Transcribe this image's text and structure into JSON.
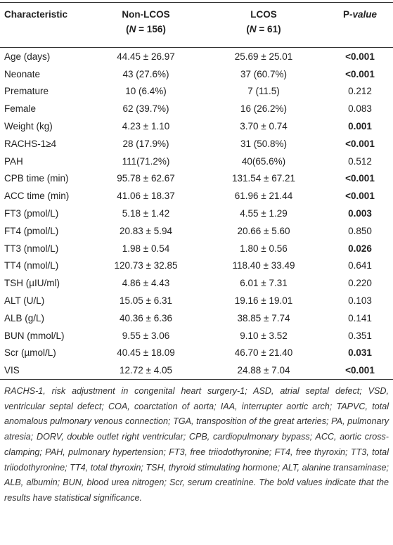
{
  "table": {
    "header": {
      "characteristic": "Characteristic",
      "non_lcos": {
        "label": "Non-LCOS",
        "n_parts": [
          "(",
          "N",
          " = 156)"
        ]
      },
      "lcos": {
        "label": "LCOS",
        "n_parts": [
          "(",
          "N",
          " = 61)"
        ]
      },
      "p_value": [
        "P",
        "-value"
      ]
    },
    "rows": [
      [
        "Age (days)",
        "44.45 ± 26.97",
        "25.69 ± 25.01",
        "<0.001"
      ],
      [
        "Neonate",
        "43 (27.6%)",
        "37 (60.7%)",
        "<0.001"
      ],
      [
        "Premature",
        "10 (6.4%)",
        "7 (11.5)",
        "0.212"
      ],
      [
        "Female",
        "62 (39.7%)",
        "16 (26.2%)",
        "0.083"
      ],
      [
        "Weight (kg)",
        "4.23 ± 1.10",
        "3.70 ± 0.74",
        "0.001"
      ],
      [
        "RACHS-1≥4",
        "28 (17.9%)",
        "31 (50.8%)",
        "<0.001"
      ],
      [
        "PAH",
        "111(71.2%)",
        "40(65.6%)",
        "0.512"
      ],
      [
        "CPB time (min)",
        "95.78 ± 62.67",
        "131.54 ± 67.21",
        "<0.001"
      ],
      [
        "ACC time (min)",
        "41.06 ± 18.37",
        "61.96 ± 21.44",
        "<0.001"
      ],
      [
        "FT3 (pmol/L)",
        "5.18 ± 1.42",
        "4.55 ± 1.29",
        "0.003"
      ],
      [
        "FT4 (pmol/L)",
        "20.83 ± 5.94",
        "20.66 ± 5.60",
        "0.850"
      ],
      [
        "TT3 (nmol/L)",
        "1.98 ± 0.54",
        "1.80 ± 0.56",
        "0.026"
      ],
      [
        "TT4 (nmol/L)",
        "120.73 ± 32.85",
        "118.40 ± 33.49",
        "0.641"
      ],
      [
        "TSH (µIU/ml)",
        "4.86 ± 4.43",
        "6.01 ± 7.31",
        "0.220"
      ],
      [
        "ALT (U/L)",
        "15.05 ± 6.31",
        "19.16 ± 19.01",
        "0.103"
      ],
      [
        "ALB (g/L)",
        "40.36 ± 6.36",
        "38.85 ± 7.74",
        "0.141"
      ],
      [
        "BUN (mmol/L)",
        "9.55 ± 3.06",
        "9.10 ± 3.52",
        "0.351"
      ],
      [
        "Scr (µmol/L)",
        "40.45 ± 18.09",
        "46.70 ± 21.40",
        "0.031"
      ],
      [
        "VIS",
        "12.72 ± 4.05",
        "24.88 ± 7.04",
        "<0.001"
      ]
    ],
    "bold_p": [
      true,
      true,
      false,
      false,
      true,
      true,
      false,
      true,
      true,
      true,
      false,
      true,
      false,
      false,
      false,
      false,
      false,
      true,
      true
    ],
    "footnote": "RACHS-1, risk adjustment in congenital heart surgery-1; ASD, atrial septal defect; VSD, ventricular septal defect; COA, coarctation of aorta; IAA, interrupter aortic arch; TAPVC, total anomalous pulmonary venous connection; TGA, transposition of the great arteries; PA, pulmonary atresia; DORV, double outlet right ventricular; CPB, cardiopulmonary bypass; ACC, aortic cross-clamping; PAH, pulmonary hypertension; FT3, free triiodothyronine; FT4, free thyroxin; TT3, total triiodothyronine; TT4, total thyroxin; TSH, thyroid stimulating hormone; ALT, alanine transaminase; ALB, albumin; BUN, blood urea nitrogen; Scr, serum creatinine. The bold values indicate that the results have statistical significance."
  }
}
